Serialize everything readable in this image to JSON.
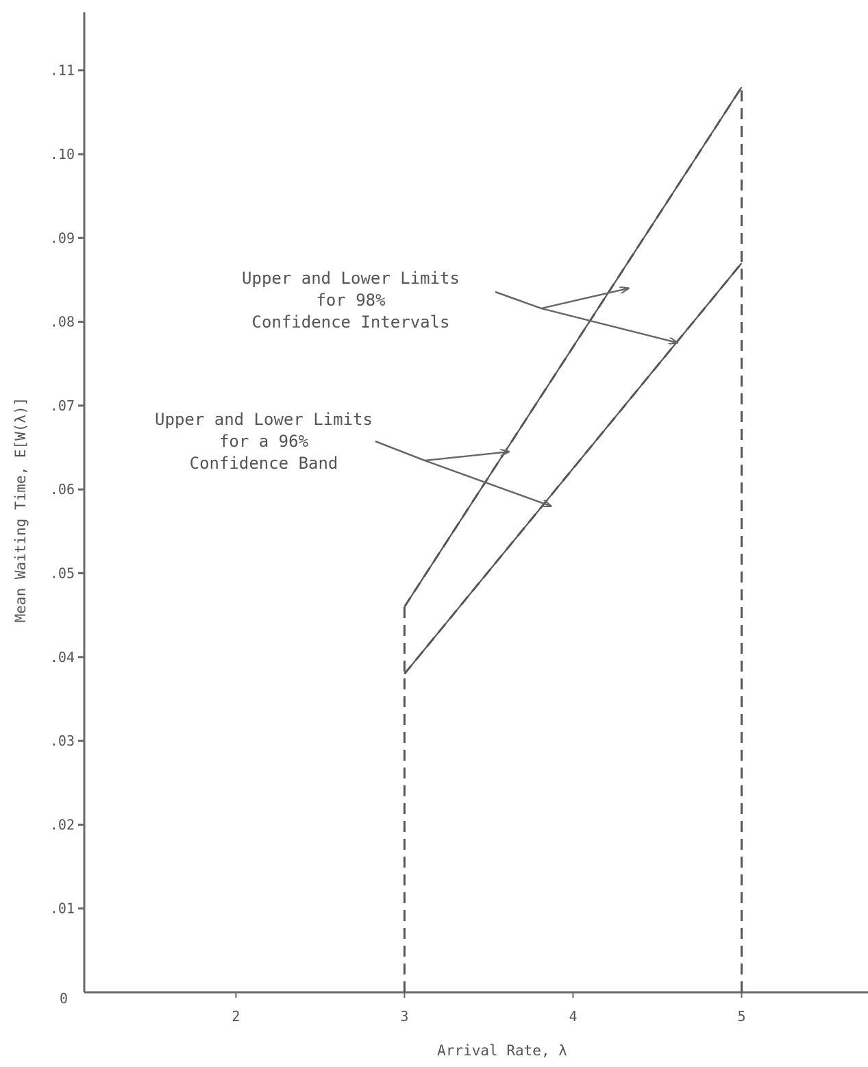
{
  "chart_data": {
    "type": "line",
    "title": "",
    "xlabel": "Arrival Rate, λ",
    "ylabel": "Mean Waiting Time, E[W(λ)]",
    "xlim": [
      1.1,
      5.75
    ],
    "ylim": [
      0,
      0.115
    ],
    "x_ticks": [
      {
        "value": 2,
        "label": "2"
      },
      {
        "value": 3,
        "label": "3"
      },
      {
        "value": 4,
        "label": "4"
      },
      {
        "value": 5,
        "label": "5"
      }
    ],
    "origin_label": "0",
    "y_ticks": [
      {
        "value": 0.01,
        "label": ".01"
      },
      {
        "value": 0.02,
        "label": ".02"
      },
      {
        "value": 0.03,
        "label": ".03"
      },
      {
        "value": 0.04,
        "label": ".04"
      },
      {
        "value": 0.05,
        "label": ".05"
      },
      {
        "value": 0.06,
        "label": ".06"
      },
      {
        "value": 0.07,
        "label": ".07"
      },
      {
        "value": 0.08,
        "label": ".08"
      },
      {
        "value": 0.09,
        "label": ".09"
      },
      {
        "value": 0.1,
        "label": ".10"
      },
      {
        "value": 0.11,
        "label": ".11"
      }
    ],
    "grid": false,
    "series": [
      {
        "style": "solid",
        "x": [
          3,
          5
        ],
        "y": [
          0.046,
          0.108
        ]
      },
      {
        "style": "solid",
        "x": [
          3,
          5
        ],
        "y": [
          0.038,
          0.087
        ]
      },
      {
        "style": "dashed",
        "x": [
          3,
          5
        ],
        "y": [
          0.046,
          0.108
        ]
      },
      {
        "style": "dashed",
        "x": [
          3,
          5
        ],
        "y": [
          0.038,
          0.087
        ]
      },
      {
        "style": "dashed",
        "x": [
          3,
          3
        ],
        "y": [
          0,
          0.046
        ]
      },
      {
        "style": "dashed",
        "x": [
          5,
          5
        ],
        "y": [
          0,
          0.108
        ]
      }
    ],
    "annotations": [
      {
        "lines": [
          "Upper and Lower Limits",
          "for 98%",
          "Confidence Intervals"
        ],
        "arrows_to": [
          [
            4.33,
            0.084
          ],
          [
            4.62,
            0.0775
          ]
        ]
      },
      {
        "lines": [
          "Upper and Lower Limits",
          "for a 96%",
          "Confidence Band"
        ],
        "arrows_to": [
          [
            3.62,
            0.0645
          ],
          [
            3.87,
            0.058
          ]
        ]
      }
    ],
    "colors": {
      "ink": "#555555",
      "axis": "#6a6a6a"
    }
  }
}
